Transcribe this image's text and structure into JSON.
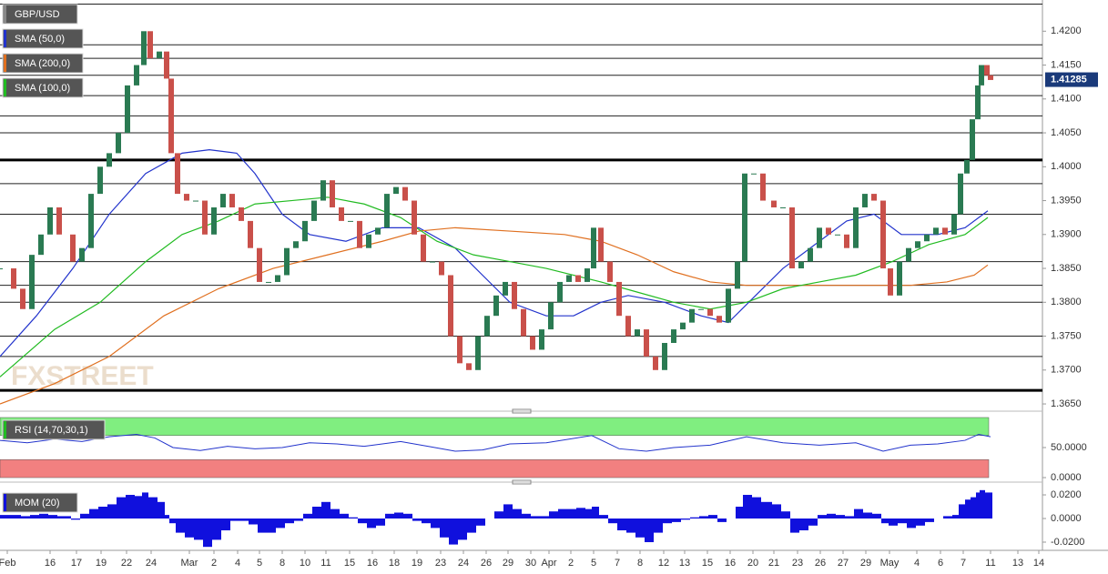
{
  "chart_data": [
    {
      "type": "candlestick",
      "title": "GBP/USD",
      "watermark": "FXSTREET",
      "up_color": "#2a7a52",
      "down_color": "#c9504a",
      "x": [
        0,
        15,
        25,
        35,
        45,
        55,
        65,
        80,
        90,
        100,
        110,
        120,
        130,
        140,
        150,
        158,
        165,
        175,
        183,
        188,
        195,
        205,
        215,
        225,
        235,
        245,
        255,
        265,
        275,
        285,
        295,
        305,
        315,
        325,
        335,
        345,
        355,
        365,
        375,
        385,
        395,
        405,
        415,
        425,
        435,
        445,
        455,
        465,
        475,
        485,
        495,
        505,
        515,
        525,
        535,
        545,
        555,
        565,
        575,
        585,
        595,
        605,
        615,
        625,
        635,
        645,
        652,
        660,
        670,
        680,
        690,
        700,
        710,
        720,
        730,
        740,
        750,
        760,
        770,
        780,
        790,
        800,
        810,
        818,
        828,
        838,
        850,
        860,
        870,
        880,
        890,
        900,
        910,
        920,
        930,
        940,
        950,
        960,
        970,
        978,
        988,
        998,
        1008,
        1018,
        1028,
        1038,
        1048,
        1055,
        1062,
        1068,
        1074,
        1078,
        1084,
        1088
      ],
      "values": [
        1.385,
        1.382,
        1.379,
        1.387,
        1.39,
        1.394,
        1.39,
        1.386,
        1.388,
        1.396,
        1.4,
        1.402,
        1.405,
        1.412,
        1.415,
        1.42,
        1.416,
        1.417,
        1.413,
        1.402,
        1.396,
        1.395,
        1.395,
        1.39,
        1.394,
        1.396,
        1.394,
        1.392,
        1.388,
        1.383,
        1.383,
        1.384,
        1.388,
        1.389,
        1.392,
        1.395,
        1.398,
        1.394,
        1.392,
        1.392,
        1.388,
        1.39,
        1.391,
        1.396,
        1.397,
        1.395,
        1.39,
        1.386,
        1.386,
        1.384,
        1.375,
        1.371,
        1.37,
        1.375,
        1.378,
        1.381,
        1.383,
        1.379,
        1.375,
        1.373,
        1.376,
        1.38,
        1.383,
        1.384,
        1.383,
        1.385,
        1.391,
        1.386,
        1.383,
        1.378,
        1.375,
        1.376,
        1.372,
        1.37,
        1.374,
        1.376,
        1.377,
        1.379,
        1.379,
        1.378,
        1.377,
        1.382,
        1.386,
        1.399,
        1.399,
        1.395,
        1.394,
        1.394,
        1.385,
        1.386,
        1.388,
        1.391,
        1.39,
        1.39,
        1.388,
        1.394,
        1.396,
        1.395,
        1.385,
        1.381,
        1.386,
        1.388,
        1.389,
        1.39,
        1.391,
        1.39,
        1.393,
        1.399,
        1.401,
        1.407,
        1.412,
        1.415,
        1.4135,
        1.4128
      ],
      "series": [
        {
          "name": "SMA (50,0)",
          "color": "#2233cc",
          "x": [
            0,
            40,
            80,
            120,
            160,
            200,
            230,
            260,
            280,
            310,
            340,
            380,
            420,
            460,
            500,
            530,
            560,
            600,
            630,
            660,
            690,
            730,
            770,
            800,
            830,
            860,
            900,
            930,
            960,
            990,
            1030,
            1060,
            1085
          ],
          "values": [
            1.372,
            1.378,
            1.385,
            1.393,
            1.399,
            1.402,
            1.4025,
            1.402,
            1.399,
            1.393,
            1.39,
            1.389,
            1.391,
            1.391,
            1.388,
            1.384,
            1.38,
            1.378,
            1.378,
            1.38,
            1.381,
            1.38,
            1.378,
            1.377,
            1.381,
            1.385,
            1.389,
            1.392,
            1.393,
            1.39,
            1.39,
            1.391,
            1.3935
          ]
        },
        {
          "name": "SMA (200,0)",
          "color": "#e07020",
          "x": [
            0,
            60,
            120,
            180,
            240,
            300,
            360,
            420,
            460,
            500,
            560,
            620,
            660,
            700,
            740,
            780,
            820,
            880,
            940,
            1000,
            1040,
            1070,
            1085
          ],
          "values": [
            1.365,
            1.368,
            1.372,
            1.378,
            1.382,
            1.385,
            1.387,
            1.389,
            1.3905,
            1.391,
            1.3905,
            1.39,
            1.389,
            1.387,
            1.3845,
            1.383,
            1.3825,
            1.3825,
            1.3825,
            1.3825,
            1.383,
            1.384,
            1.3855
          ]
        },
        {
          "name": "SMA (100,0)",
          "color": "#22bb22",
          "x": [
            0,
            60,
            110,
            160,
            200,
            240,
            280,
            320,
            360,
            400,
            440,
            480,
            520,
            560,
            600,
            660,
            700,
            740,
            780,
            820,
            860,
            900,
            940,
            980,
            1020,
            1060,
            1085
          ],
          "values": [
            1.369,
            1.376,
            1.38,
            1.386,
            1.39,
            1.392,
            1.3945,
            1.395,
            1.3955,
            1.3945,
            1.3925,
            1.389,
            1.387,
            1.386,
            1.385,
            1.383,
            1.3815,
            1.38,
            1.379,
            1.38,
            1.382,
            1.383,
            1.384,
            1.386,
            1.3885,
            1.39,
            1.3925
          ]
        }
      ],
      "xlim": [
        0,
        1145
      ],
      "ylim": [
        1.3642,
        1.4242
      ],
      "yticks": [
        {
          "value": 1.42,
          "label": "1.4200"
        },
        {
          "value": 1.415,
          "label": "1.4150"
        },
        {
          "value": 1.41,
          "label": "1.4100"
        },
        {
          "value": 1.405,
          "label": "1.4050"
        },
        {
          "value": 1.4,
          "label": "1.4000"
        },
        {
          "value": 1.395,
          "label": "1.3950"
        },
        {
          "value": 1.39,
          "label": "1.3900"
        },
        {
          "value": 1.385,
          "label": "1.3850"
        },
        {
          "value": 1.38,
          "label": "1.3800"
        },
        {
          "value": 1.375,
          "label": "1.3750"
        },
        {
          "value": 1.37,
          "label": "1.3700"
        },
        {
          "value": 1.365,
          "label": "1.3650"
        }
      ],
      "levels": [
        1.424,
        1.418,
        1.416,
        1.4135,
        1.4105,
        1.4075,
        1.405,
        1.3975,
        1.393,
        1.386,
        1.3825,
        1.38,
        1.375,
        1.372
      ],
      "bold_levels": [
        1.401,
        1.367
      ],
      "last_value": 1.41285,
      "last_value_color": "#1a3a7a",
      "xticks": [
        {
          "value": 8,
          "label": "Feb"
        },
        {
          "value": 55,
          "label": "16"
        },
        {
          "value": 84,
          "label": "17"
        },
        {
          "value": 111,
          "label": "19"
        },
        {
          "value": 139,
          "label": "22"
        },
        {
          "value": 166,
          "label": "24"
        },
        {
          "value": 208,
          "label": "Mar"
        },
        {
          "value": 235,
          "label": "2"
        },
        {
          "value": 261,
          "label": "4"
        },
        {
          "value": 285,
          "label": "5"
        },
        {
          "value": 310,
          "label": "8"
        },
        {
          "value": 335,
          "label": "10"
        },
        {
          "value": 358,
          "label": "11"
        },
        {
          "value": 384,
          "label": "15"
        },
        {
          "value": 409,
          "label": "16"
        },
        {
          "value": 433,
          "label": "18"
        },
        {
          "value": 458,
          "label": "19"
        },
        {
          "value": 484,
          "label": "23"
        },
        {
          "value": 509,
          "label": "24"
        },
        {
          "value": 534,
          "label": "26"
        },
        {
          "value": 558,
          "label": "29"
        },
        {
          "value": 583,
          "label": "30"
        },
        {
          "value": 603,
          "label": "Apr"
        },
        {
          "value": 627,
          "label": "2"
        },
        {
          "value": 652,
          "label": "5"
        },
        {
          "value": 678,
          "label": "7"
        },
        {
          "value": 703,
          "label": "8"
        },
        {
          "value": 729,
          "label": "12"
        },
        {
          "value": 752,
          "label": "13"
        },
        {
          "value": 777,
          "label": "15"
        },
        {
          "value": 802,
          "label": "16"
        },
        {
          "value": 827,
          "label": "20"
        },
        {
          "value": 850,
          "label": "21"
        },
        {
          "value": 876,
          "label": "23"
        },
        {
          "value": 901,
          "label": "26"
        },
        {
          "value": 926,
          "label": "27"
        },
        {
          "value": 951,
          "label": "29"
        },
        {
          "value": 977,
          "label": "May"
        },
        {
          "value": 1007,
          "label": "4"
        },
        {
          "value": 1033,
          "label": "6"
        },
        {
          "value": 1058,
          "label": "7"
        },
        {
          "value": 1088,
          "label": "11"
        },
        {
          "value": 1118,
          "label": "13"
        },
        {
          "value": 1141,
          "label": "14"
        }
      ]
    },
    {
      "type": "line",
      "title": "RSI (14,70,30,1)",
      "color": "#2233cc",
      "x": [
        0,
        30,
        60,
        90,
        120,
        150,
        170,
        190,
        220,
        250,
        280,
        310,
        340,
        370,
        400,
        440,
        470,
        500,
        530,
        560,
        600,
        650,
        680,
        710,
        740,
        780,
        820,
        860,
        900,
        940,
        970,
        1000,
        1030,
        1060,
        1075,
        1088
      ],
      "values": [
        62,
        58,
        64,
        60,
        68,
        72,
        66,
        50,
        45,
        52,
        48,
        50,
        58,
        56,
        52,
        60,
        52,
        44,
        46,
        56,
        58,
        70,
        48,
        44,
        50,
        54,
        68,
        58,
        54,
        58,
        44,
        54,
        56,
        62,
        72,
        68
      ],
      "ylim": [
        -3,
        103
      ],
      "yticks": [
        {
          "value": 50,
          "label": "50.0000"
        },
        {
          "value": 0,
          "label": "0.0000"
        }
      ],
      "bands": [
        {
          "from": 70,
          "to": 100,
          "color": "#80ee80"
        },
        {
          "from": 0,
          "to": 30,
          "color": "#f28080"
        }
      ]
    },
    {
      "type": "histogram",
      "title": "MOM (20)",
      "color": "#1010dd",
      "values": [
        0.003,
        0.003,
        0.002,
        0.003,
        0.004,
        0.003,
        0.002,
        -0.001,
        0.004,
        0.008,
        0.01,
        0.012,
        0.018,
        0.02,
        0.019,
        0.022,
        0.018,
        0.014,
        0.003,
        -0.004,
        -0.012,
        -0.016,
        -0.018,
        -0.024,
        -0.018,
        -0.01,
        -0.002,
        -0.002,
        -0.005,
        -0.012,
        -0.012,
        -0.008,
        -0.004,
        -0.002,
        0.004,
        0.01,
        0.014,
        0.008,
        0.004,
        0.001,
        -0.004,
        -0.008,
        -0.006,
        0.004,
        0.005,
        0.004,
        -0.002,
        -0.004,
        -0.008,
        -0.016,
        -0.022,
        -0.018,
        -0.012,
        -0.006,
        0,
        0.006,
        0.012,
        0.008,
        0.004,
        0.002,
        0.002,
        0.006,
        0.008,
        0.008,
        0.009,
        0.008,
        0.01,
        0.003,
        -0.004,
        -0.01,
        -0.012,
        -0.016,
        -0.02,
        -0.012,
        -0.004,
        -0.003,
        -0.001,
        0.001,
        0.002,
        0.003,
        -0.003,
        0,
        0.01,
        0.02,
        0.018,
        0.014,
        0.012,
        0.006,
        -0.012,
        -0.01,
        -0.006,
        0.003,
        0.004,
        0.003,
        0.002,
        0.008,
        0.005,
        0.004,
        -0.004,
        -0.006,
        -0.004,
        -0.008,
        -0.006,
        -0.003,
        0,
        0.002,
        0.003,
        0.012,
        0.016,
        0.018,
        0.022,
        0.024,
        0.022,
        0.022
      ],
      "ylim": [
        -0.0254,
        0.0254
      ],
      "yticks": [
        {
          "value": 0.02,
          "label": "0.0200"
        },
        {
          "value": 0,
          "label": "0.0000"
        },
        {
          "value": -0.02,
          "label": "-0.0200"
        }
      ]
    }
  ]
}
